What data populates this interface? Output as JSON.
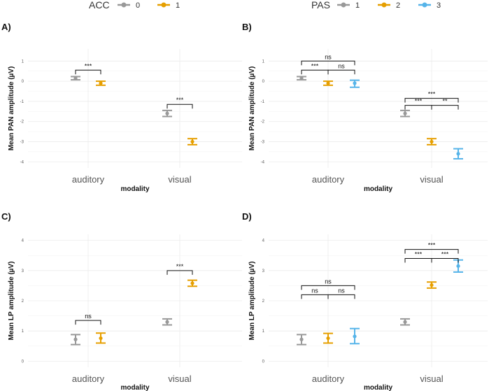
{
  "colors": {
    "level0": "#999999",
    "level1": "#E69F00",
    "pas1": "#999999",
    "pas2": "#E69F00",
    "pas3": "#56B4E9"
  },
  "legends": [
    {
      "title": "ACC",
      "items": [
        {
          "label": "0",
          "color": "#999999"
        },
        {
          "label": "1",
          "color": "#E69F00"
        }
      ]
    },
    {
      "title": "PAS",
      "items": [
        {
          "label": "1",
          "color": "#999999"
        },
        {
          "label": "2",
          "color": "#E69F00"
        },
        {
          "label": "3",
          "color": "#56B4E9"
        }
      ]
    }
  ],
  "chart_data": [
    {
      "panel": "A)",
      "type": "scatter",
      "xlabel": "modality",
      "ylabel": "Mean PAN amplitude (µV)",
      "categories": [
        "auditory",
        "visual"
      ],
      "ylim": [
        -4.3,
        1.6
      ],
      "yticks": [
        -4,
        -3,
        -2,
        -1,
        0,
        1
      ],
      "series": [
        {
          "name": "0",
          "color": "#999999",
          "points": [
            {
              "mean": 0.15,
              "lo": 0.07,
              "hi": 0.23
            },
            {
              "mean": -1.6,
              "lo": -1.75,
              "hi": -1.45
            }
          ]
        },
        {
          "name": "1",
          "color": "#E69F00",
          "points": [
            {
              "mean": -0.1,
              "lo": -0.2,
              "hi": 0.0
            },
            {
              "mean": -3.0,
              "lo": -3.15,
              "hi": -2.85
            }
          ]
        }
      ],
      "comparisons": [
        {
          "cat": 0,
          "from": 0,
          "to": 1,
          "y": 0.55,
          "label": "***"
        },
        {
          "cat": 1,
          "from": 0,
          "to": 1,
          "y": -1.15,
          "label": "***"
        }
      ]
    },
    {
      "panel": "B)",
      "type": "scatter",
      "xlabel": "modality",
      "ylabel": "Mean PAN amplitude (µV)",
      "categories": [
        "auditory",
        "visual"
      ],
      "ylim": [
        -4.3,
        1.6
      ],
      "yticks": [
        -4,
        -3,
        -2,
        -1,
        0,
        1
      ],
      "series": [
        {
          "name": "1",
          "color": "#999999",
          "points": [
            {
              "mean": 0.15,
              "lo": 0.07,
              "hi": 0.23
            },
            {
              "mean": -1.6,
              "lo": -1.75,
              "hi": -1.45
            }
          ]
        },
        {
          "name": "2",
          "color": "#E69F00",
          "points": [
            {
              "mean": -0.1,
              "lo": -0.2,
              "hi": 0.0
            },
            {
              "mean": -3.0,
              "lo": -3.15,
              "hi": -2.85
            }
          ]
        },
        {
          "name": "3",
          "color": "#56B4E9",
          "points": [
            {
              "mean": -0.1,
              "lo": -0.3,
              "hi": 0.05
            },
            {
              "mean": -3.6,
              "lo": -3.85,
              "hi": -3.35
            }
          ]
        }
      ],
      "comparisons": [
        {
          "cat": 0,
          "from": 0,
          "to": 2,
          "y": 1.0,
          "label": "ns"
        },
        {
          "cat": 0,
          "from": 0,
          "to": 1,
          "y": 0.55,
          "label": "***"
        },
        {
          "cat": 0,
          "from": 1,
          "to": 2,
          "y": 0.55,
          "label": "ns"
        },
        {
          "cat": 1,
          "from": 0,
          "to": 2,
          "y": -0.85,
          "label": "***"
        },
        {
          "cat": 1,
          "from": 0,
          "to": 1,
          "y": -1.2,
          "label": "***"
        },
        {
          "cat": 1,
          "from": 1,
          "to": 2,
          "y": -1.2,
          "label": "**"
        }
      ]
    },
    {
      "panel": "C)",
      "type": "scatter",
      "xlabel": "modality",
      "ylabel": "Mean LP amplitude (µV)",
      "categories": [
        "auditory",
        "visual"
      ],
      "ylim": [
        -0.2,
        4.2
      ],
      "yticks": [
        0,
        1,
        2,
        3,
        4
      ],
      "series": [
        {
          "name": "0",
          "color": "#999999",
          "points": [
            {
              "mean": 0.72,
              "lo": 0.55,
              "hi": 0.88
            },
            {
              "mean": 1.3,
              "lo": 1.2,
              "hi": 1.4
            }
          ]
        },
        {
          "name": "1",
          "color": "#E69F00",
          "points": [
            {
              "mean": 0.76,
              "lo": 0.6,
              "hi": 0.93
            },
            {
              "mean": 2.58,
              "lo": 2.48,
              "hi": 2.68
            }
          ]
        }
      ],
      "comparisons": [
        {
          "cat": 0,
          "from": 0,
          "to": 1,
          "y": 1.35,
          "label": "ns"
        },
        {
          "cat": 1,
          "from": 0,
          "to": 1,
          "y": 3.0,
          "label": "***"
        }
      ]
    },
    {
      "panel": "D)",
      "type": "scatter",
      "xlabel": "modality",
      "ylabel": "Mean LP amplitude (µV)",
      "categories": [
        "auditory",
        "visual"
      ],
      "ylim": [
        -0.2,
        4.2
      ],
      "yticks": [
        0,
        1,
        2,
        3,
        4
      ],
      "series": [
        {
          "name": "1",
          "color": "#999999",
          "points": [
            {
              "mean": 0.72,
              "lo": 0.55,
              "hi": 0.88
            },
            {
              "mean": 1.3,
              "lo": 1.2,
              "hi": 1.4
            }
          ]
        },
        {
          "name": "2",
          "color": "#E69F00",
          "points": [
            {
              "mean": 0.76,
              "lo": 0.6,
              "hi": 0.92
            },
            {
              "mean": 2.52,
              "lo": 2.42,
              "hi": 2.62
            }
          ]
        },
        {
          "name": "3",
          "color": "#56B4E9",
          "points": [
            {
              "mean": 0.82,
              "lo": 0.58,
              "hi": 1.08
            },
            {
              "mean": 3.15,
              "lo": 2.95,
              "hi": 3.35
            }
          ]
        }
      ],
      "comparisons": [
        {
          "cat": 0,
          "from": 0,
          "to": 2,
          "y": 2.5,
          "label": "ns"
        },
        {
          "cat": 0,
          "from": 0,
          "to": 1,
          "y": 2.2,
          "label": "ns"
        },
        {
          "cat": 0,
          "from": 1,
          "to": 2,
          "y": 2.2,
          "label": "ns"
        },
        {
          "cat": 1,
          "from": 0,
          "to": 2,
          "y": 3.7,
          "label": "***"
        },
        {
          "cat": 1,
          "from": 0,
          "to": 1,
          "y": 3.4,
          "label": "***"
        },
        {
          "cat": 1,
          "from": 1,
          "to": 2,
          "y": 3.4,
          "label": "***"
        }
      ]
    }
  ]
}
